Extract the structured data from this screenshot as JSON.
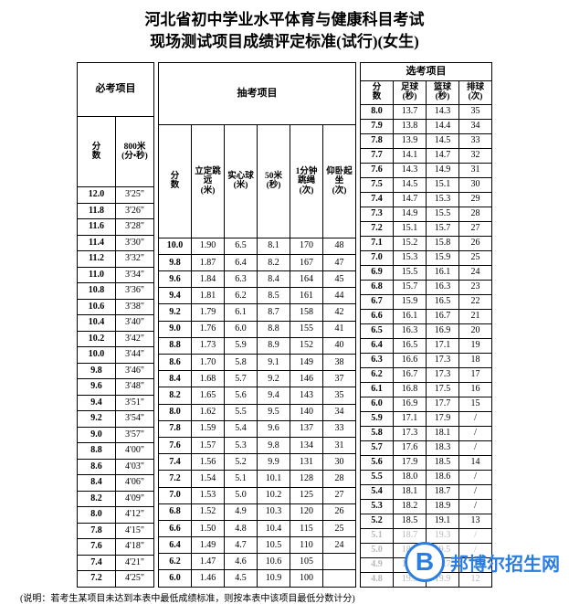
{
  "title_line1": "河北省初中学业水平体育与健康科目考试",
  "title_line2": "现场测试项目成绩评定标准(试行)(女生)",
  "footnote": "(说明：若考生某项目未达到本表中最低成绩标准，则按本表中该项目最低分数计分)",
  "watermark": {
    "logo": "B",
    "text": "邦博尔招生网"
  },
  "sections": {
    "required": {
      "header": "必考项目",
      "cols": [
        "分\n数",
        "800米\n(分•秒)"
      ],
      "rows": [
        [
          "12.0",
          "3'25\""
        ],
        [
          "11.8",
          "3'26\""
        ],
        [
          "11.6",
          "3'28\""
        ],
        [
          "11.4",
          "3'30\""
        ],
        [
          "11.2",
          "3'32\""
        ],
        [
          "11.0",
          "3'34\""
        ],
        [
          "10.8",
          "3'36\""
        ],
        [
          "10.6",
          "3'38\""
        ],
        [
          "10.4",
          "3'40\""
        ],
        [
          "10.2",
          "3'42\""
        ],
        [
          "10.0",
          "3'44\""
        ],
        [
          "9.8",
          "3'46\""
        ],
        [
          "9.6",
          "3'48\""
        ],
        [
          "9.4",
          "3'51\""
        ],
        [
          "9.2",
          "3'54\""
        ],
        [
          "9.0",
          "3'57\""
        ],
        [
          "8.8",
          "4'00\""
        ],
        [
          "8.6",
          "4'03\""
        ],
        [
          "8.4",
          "4'06\""
        ],
        [
          "8.2",
          "4'09\""
        ],
        [
          "8.0",
          "4'12\""
        ],
        [
          "7.8",
          "4'15\""
        ],
        [
          "7.6",
          "4'18\""
        ],
        [
          "7.4",
          "4'21\""
        ],
        [
          "7.2",
          "4'25\""
        ]
      ]
    },
    "draw": {
      "header": "抽考项目",
      "cols": [
        "分\n数",
        "立定跳远\n(米)",
        "实心球\n(米)",
        "50米\n(秒)",
        "1分钟跳绳\n(次)",
        "仰卧起坐\n(次)"
      ],
      "rows": [
        [
          "10.0",
          "1.90",
          "6.5",
          "8.1",
          "170",
          "48"
        ],
        [
          "9.8",
          "1.87",
          "6.4",
          "8.2",
          "167",
          "47"
        ],
        [
          "9.6",
          "1.84",
          "6.3",
          "8.4",
          "164",
          "45"
        ],
        [
          "9.4",
          "1.81",
          "6.2",
          "8.5",
          "161",
          "44"
        ],
        [
          "9.2",
          "1.79",
          "6.1",
          "8.7",
          "158",
          "42"
        ],
        [
          "9.0",
          "1.76",
          "6.0",
          "8.8",
          "155",
          "41"
        ],
        [
          "8.8",
          "1.73",
          "5.9",
          "8.9",
          "152",
          "40"
        ],
        [
          "8.6",
          "1.70",
          "5.8",
          "9.1",
          "149",
          "38"
        ],
        [
          "8.4",
          "1.68",
          "5.7",
          "9.2",
          "146",
          "37"
        ],
        [
          "8.2",
          "1.65",
          "5.6",
          "9.4",
          "143",
          "35"
        ],
        [
          "8.0",
          "1.62",
          "5.5",
          "9.5",
          "140",
          "34"
        ],
        [
          "7.8",
          "1.59",
          "5.4",
          "9.6",
          "137",
          "33"
        ],
        [
          "7.6",
          "1.57",
          "5.3",
          "9.8",
          "134",
          "31"
        ],
        [
          "7.4",
          "1.56",
          "5.2",
          "9.9",
          "131",
          "30"
        ],
        [
          "7.2",
          "1.54",
          "5.1",
          "10.1",
          "128",
          "28"
        ],
        [
          "7.0",
          "1.53",
          "5.0",
          "10.2",
          "125",
          "27"
        ],
        [
          "6.8",
          "1.52",
          "4.9",
          "10.3",
          "120",
          "26"
        ],
        [
          "6.6",
          "1.50",
          "4.8",
          "10.4",
          "115",
          "25"
        ],
        [
          "6.4",
          "1.49",
          "4.7",
          "10.5",
          "110",
          "24"
        ],
        [
          "6.2",
          "1.47",
          "4.6",
          "10.6",
          "105",
          ""
        ],
        [
          "6.0",
          "1.46",
          "4.5",
          "10.9",
          "100",
          ""
        ]
      ]
    },
    "elective": {
      "header": "选考项目",
      "cols": [
        "分\n数",
        "足球\n(秒)",
        "篮球\n(秒)",
        "排球\n(次)"
      ],
      "rows": [
        [
          "8.0",
          "13.7",
          "14.3",
          "35"
        ],
        [
          "7.9",
          "13.8",
          "14.4",
          "34"
        ],
        [
          "7.8",
          "13.9",
          "14.5",
          "33"
        ],
        [
          "7.7",
          "14.1",
          "14.7",
          "32"
        ],
        [
          "7.6",
          "14.3",
          "14.9",
          "31"
        ],
        [
          "7.5",
          "14.5",
          "15.1",
          "30"
        ],
        [
          "7.4",
          "14.7",
          "15.3",
          "29"
        ],
        [
          "7.3",
          "14.9",
          "15.5",
          "28"
        ],
        [
          "7.2",
          "15.1",
          "15.7",
          "27"
        ],
        [
          "7.1",
          "15.2",
          "15.8",
          "26"
        ],
        [
          "7.0",
          "15.3",
          "15.9",
          "25"
        ],
        [
          "6.9",
          "15.5",
          "16.1",
          "24"
        ],
        [
          "6.8",
          "15.7",
          "16.3",
          "23"
        ],
        [
          "6.7",
          "15.9",
          "16.5",
          "22"
        ],
        [
          "6.6",
          "16.1",
          "16.7",
          "21"
        ],
        [
          "6.5",
          "16.3",
          "16.9",
          "20"
        ],
        [
          "6.4",
          "16.5",
          "17.1",
          "19"
        ],
        [
          "6.3",
          "16.6",
          "17.3",
          "18"
        ],
        [
          "6.2",
          "16.7",
          "17.3",
          "17"
        ],
        [
          "6.1",
          "16.8",
          "17.5",
          "16"
        ],
        [
          "6.0",
          "16.9",
          "17.7",
          "15"
        ],
        [
          "5.9",
          "17.1",
          "17.9",
          "/"
        ],
        [
          "5.8",
          "17.3",
          "18.1",
          "/"
        ],
        [
          "5.7",
          "17.6",
          "18.3",
          "/"
        ],
        [
          "5.6",
          "17.9",
          "18.5",
          "14"
        ],
        [
          "5.5",
          "18.0",
          "18.6",
          "/"
        ],
        [
          "5.4",
          "18.1",
          "18.7",
          "/"
        ],
        [
          "5.3",
          "18.2",
          "18.9",
          "/"
        ],
        [
          "5.2",
          "18.5",
          "19.1",
          "13"
        ],
        [
          "5.1",
          "18.7",
          "19.3",
          "/"
        ],
        [
          "5.0",
          "18.9",
          "19.5",
          "/"
        ],
        [
          "4.9",
          "19.1",
          "19.7",
          "/"
        ],
        [
          "4.8",
          "19.3",
          "19.9",
          "12"
        ]
      ],
      "faded_rows": [
        29,
        30,
        31,
        32
      ]
    }
  },
  "colors": {
    "text": "#000000",
    "border": "#000000",
    "accent": "#2a7de1",
    "faded": "#b8b8b8"
  }
}
